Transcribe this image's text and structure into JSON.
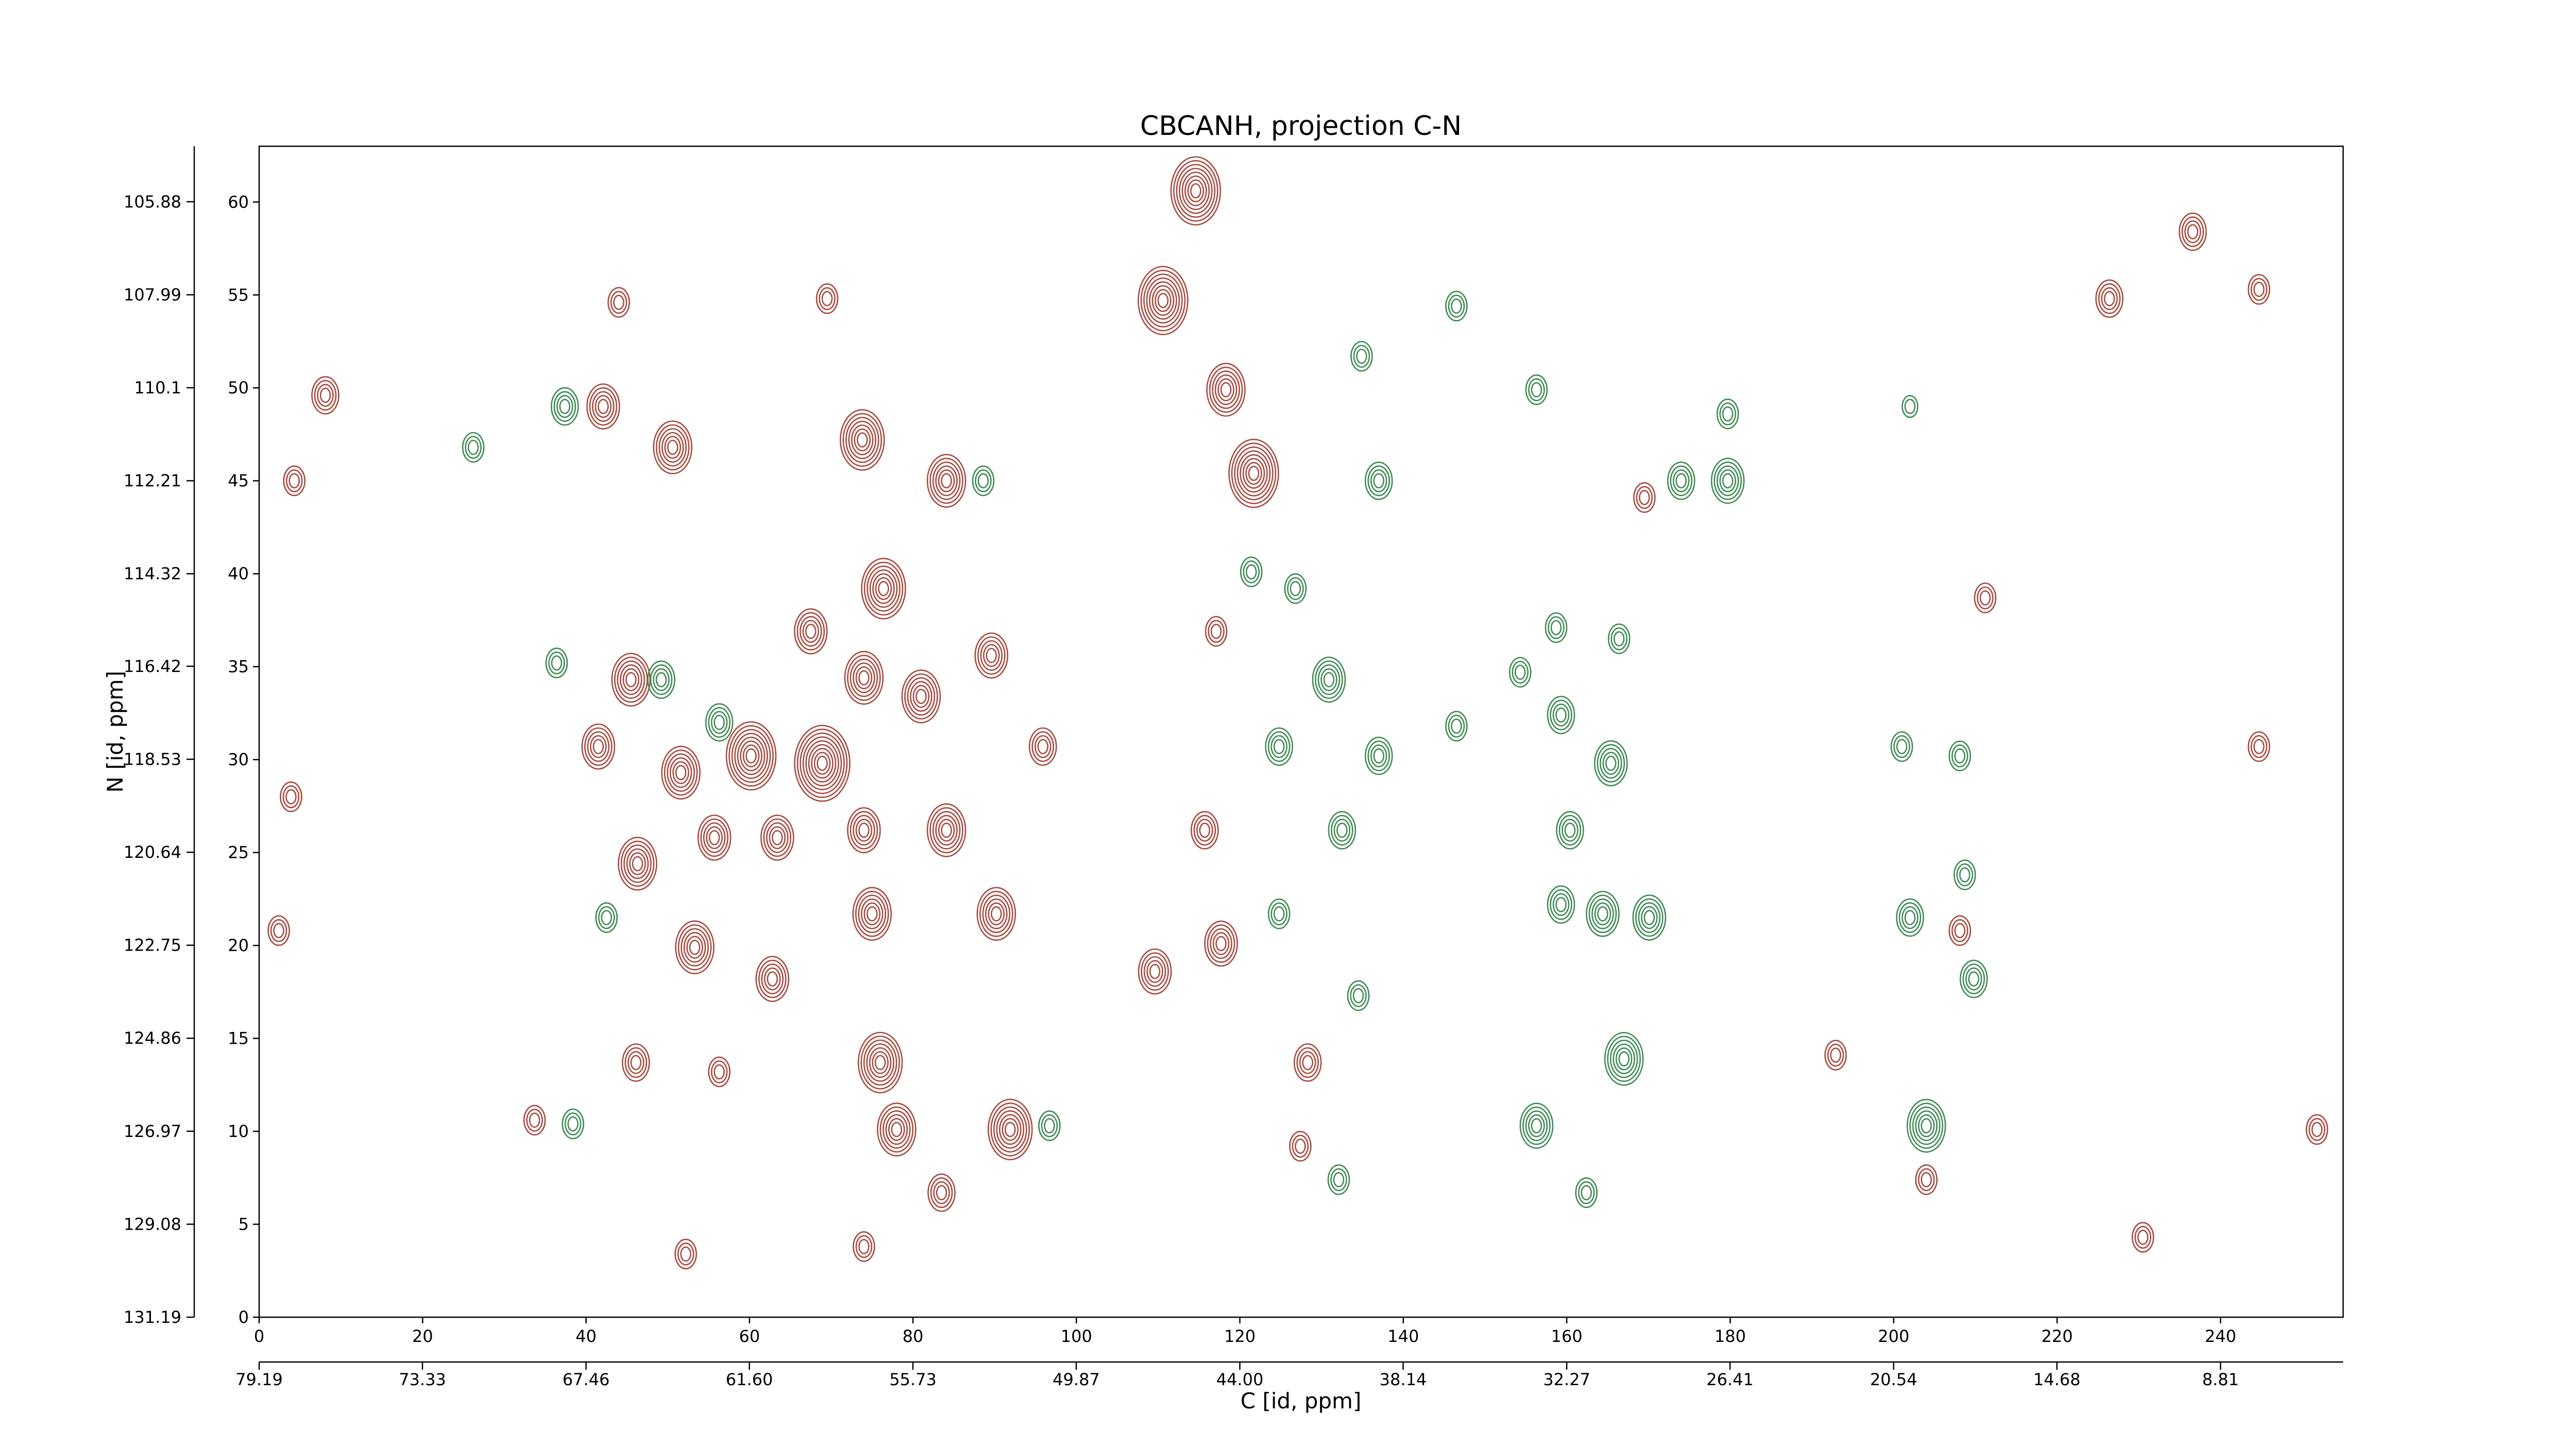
{
  "chart_data": {
    "type": "contour",
    "title": "CBCANH, projection C-N",
    "x_label": "C [id, ppm]",
    "y_label": "N [id, ppm]",
    "xlim": [
      0,
      255
    ],
    "xticks": [
      0,
      20,
      40,
      60,
      80,
      100,
      120,
      140,
      160,
      180,
      200,
      220,
      240
    ],
    "ylim": [
      0,
      63
    ],
    "yticks": [
      0,
      5,
      10,
      15,
      20,
      25,
      30,
      35,
      40,
      45,
      50,
      55,
      60
    ],
    "x2lim": [
      79.19,
      4.41
    ],
    "x2ticks": [
      79.19,
      73.33,
      67.46,
      {
        "value": 61.6,
        "label": "61.60"
      },
      55.73,
      49.87,
      {
        "value": 44,
        "label": "44.00"
      },
      38.14,
      32.27,
      26.41,
      20.54,
      14.68,
      8.81
    ],
    "y2lim": [
      131.19,
      104.62
    ],
    "y2ticks": [
      131.19,
      129.08,
      126.97,
      124.86,
      122.75,
      120.64,
      118.53,
      116.42,
      114.32,
      112.21,
      110.1,
      107.99,
      105.88
    ],
    "positive_color": "#a84a3f",
    "negative_color": "#3f8a53",
    "positive_peaks": {
      "x": [
        114.6,
        110.6,
        118.3,
        121.7,
        73.8,
        84.1,
        50.6,
        42.1,
        8.1,
        4.3,
        69.5,
        44,
        76.4,
        67.5,
        60.2,
        68.9,
        51.6,
        45.5,
        41.5,
        46.3,
        55.7,
        63.4,
        74,
        75,
        84.1,
        90.2,
        53.3,
        62.8,
        46.1,
        76,
        78,
        91.9,
        83.5,
        89.6,
        95.9,
        74,
        81,
        117.7,
        109.6,
        115.7,
        117.1,
        128.3,
        127.4,
        33.7,
        56.3,
        52.2,
        74,
        236.6,
        226.4,
        244.7,
        208.1,
        211.2,
        192.9,
        204,
        230.5,
        251.8,
        244.7,
        169.5,
        3.9,
        2.4
      ],
      "y": [
        60.6,
        54.7,
        49.9,
        45.4,
        47.2,
        45,
        46.8,
        49,
        49.6,
        45,
        54.8,
        54.6,
        39.2,
        36.9,
        30.2,
        29.8,
        29.3,
        34.3,
        30.7,
        24.4,
        25.8,
        25.8,
        26.2,
        21.7,
        26.2,
        21.7,
        19.9,
        18.2,
        13.7,
        13.7,
        10.1,
        10.1,
        6.7,
        35.6,
        30.7,
        34.4,
        33.4,
        20.1,
        18.6,
        26.2,
        36.9,
        13.7,
        9.2,
        10.6,
        13.2,
        3.4,
        3.8,
        58.4,
        54.8,
        55.3,
        20.8,
        38.7,
        14.1,
        7.4,
        4.3,
        10.1,
        30.7,
        44.1,
        28,
        20.8
      ],
      "levels": [
        8,
        8,
        6,
        8,
        7,
        6,
        6,
        5,
        4,
        3,
        3,
        3,
        7,
        5,
        8,
        9,
        6,
        6,
        5,
        6,
        5,
        5,
        5,
        6,
        6,
        6,
        6,
        5,
        4,
        7,
        6,
        7,
        4,
        5,
        4,
        6,
        6,
        5,
        5,
        4,
        3,
        4,
        3,
        3,
        3,
        3,
        3,
        4,
        4,
        3,
        3,
        3,
        3,
        3,
        3,
        3,
        3,
        3,
        3,
        3
      ]
    },
    "negative_peaks": {
      "x": [
        179.7,
        174,
        179.7,
        137,
        121.4,
        126.8,
        130.9,
        124.8,
        137,
        146.5,
        159.3,
        154.3,
        158.7,
        166.4,
        165.4,
        160.4,
        164.4,
        170.1,
        159.3,
        167,
        156.3,
        162.4,
        132.5,
        134.5,
        132.1,
        124.8,
        204,
        202,
        208.7,
        209.8,
        208.1,
        201,
        37.4,
        26.2,
        36.4,
        49.2,
        56.3,
        42.5,
        38.4,
        96.7,
        88.6,
        134.9,
        146.5,
        156.3,
        202
      ],
      "y": [
        45,
        45,
        48.6,
        45,
        40.1,
        39.2,
        34.3,
        30.7,
        30.2,
        31.8,
        32.4,
        34.7,
        37.1,
        36.5,
        29.8,
        26.2,
        21.7,
        21.5,
        22.2,
        13.9,
        10.3,
        6.7,
        26.2,
        17.3,
        7.4,
        21.7,
        10.3,
        21.5,
        23.8,
        18.2,
        30.2,
        30.7,
        49,
        46.8,
        35.2,
        34.3,
        32,
        21.5,
        10.4,
        10.3,
        45,
        51.7,
        54.4,
        49.9,
        49
      ],
      "levels": [
        5,
        4,
        3,
        4,
        3,
        3,
        5,
        4,
        4,
        3,
        4,
        3,
        3,
        3,
        5,
        4,
        5,
        5,
        4,
        6,
        5,
        3,
        4,
        3,
        3,
        3,
        6,
        4,
        3,
        4,
        3,
        3,
        4,
        3,
        3,
        4,
        4,
        3,
        3,
        3,
        3,
        3,
        3,
        3,
        2
      ]
    }
  }
}
